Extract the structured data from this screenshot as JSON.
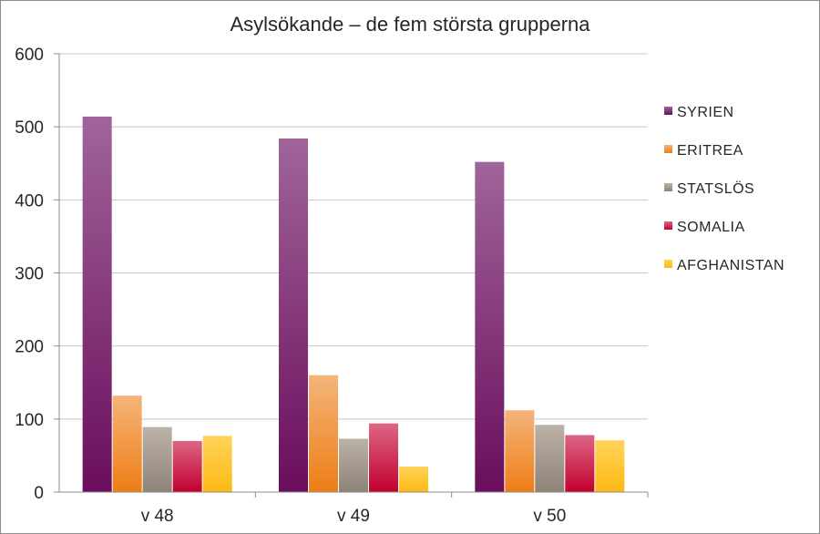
{
  "chart_data": {
    "type": "bar",
    "title": "Asylsökande – de fem största grupperna",
    "xlabel": "",
    "ylabel": "",
    "categories": [
      "v 48",
      "v 49",
      "v 50"
    ],
    "ylim": [
      0,
      600
    ],
    "yticks": [
      0,
      100,
      200,
      300,
      400,
      500,
      600
    ],
    "grid": true,
    "legend_position": "right",
    "series": [
      {
        "name": "SYRIEN",
        "values": [
          514,
          484,
          452
        ],
        "color_top": "#a0649a",
        "color_bottom": "#6a0d5c"
      },
      {
        "name": "ERITREA",
        "values": [
          132,
          160,
          112
        ],
        "color_top": "#f4b57a",
        "color_bottom": "#ee7d16"
      },
      {
        "name": "STATSLÖS",
        "values": [
          89,
          73,
          92
        ],
        "color_top": "#bcb2a8",
        "color_bottom": "#8e8377"
      },
      {
        "name": "SOMALIA",
        "values": [
          70,
          94,
          78
        ],
        "color_top": "#dc6684",
        "color_bottom": "#c2002f"
      },
      {
        "name": "AFGHANISTAN",
        "values": [
          77,
          35,
          71
        ],
        "color_top": "#ffd45a",
        "color_bottom": "#fdb913"
      }
    ]
  }
}
